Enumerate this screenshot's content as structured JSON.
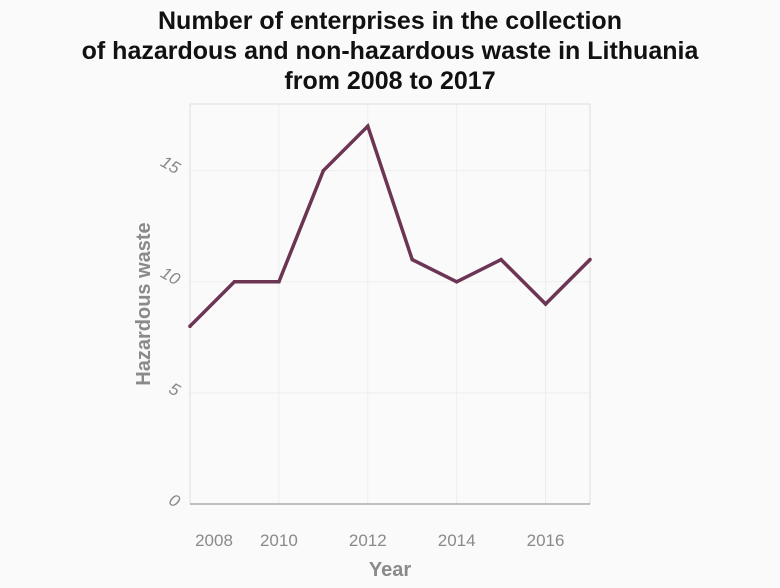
{
  "chart_data": {
    "type": "line",
    "title_lines": [
      "Number of enterprises in the collection",
      "of hazardous and non-hazardous waste in Lithuania",
      "from 2008 to 2017"
    ],
    "xlabel": "Year",
    "ylabel": "Hazardous waste",
    "x": [
      2008,
      2009,
      2010,
      2011,
      2012,
      2013,
      2014,
      2015,
      2016,
      2017
    ],
    "series": [
      {
        "values": [
          8,
          10,
          10,
          15,
          17,
          11,
          10,
          11,
          9,
          11
        ],
        "color": "#6b3553"
      }
    ],
    "xlim": [
      2008,
      2017
    ],
    "ylim": [
      0,
      18
    ],
    "xticks": [
      2008,
      2010,
      2012,
      2014,
      2016
    ],
    "xtick_labels": [
      "2008",
      "2010",
      "2012",
      "2014",
      "2016"
    ],
    "yticks": [
      0,
      5,
      10,
      15
    ],
    "ytick_labels": [
      "0",
      "5",
      "10",
      "15"
    ],
    "grid": true
  }
}
